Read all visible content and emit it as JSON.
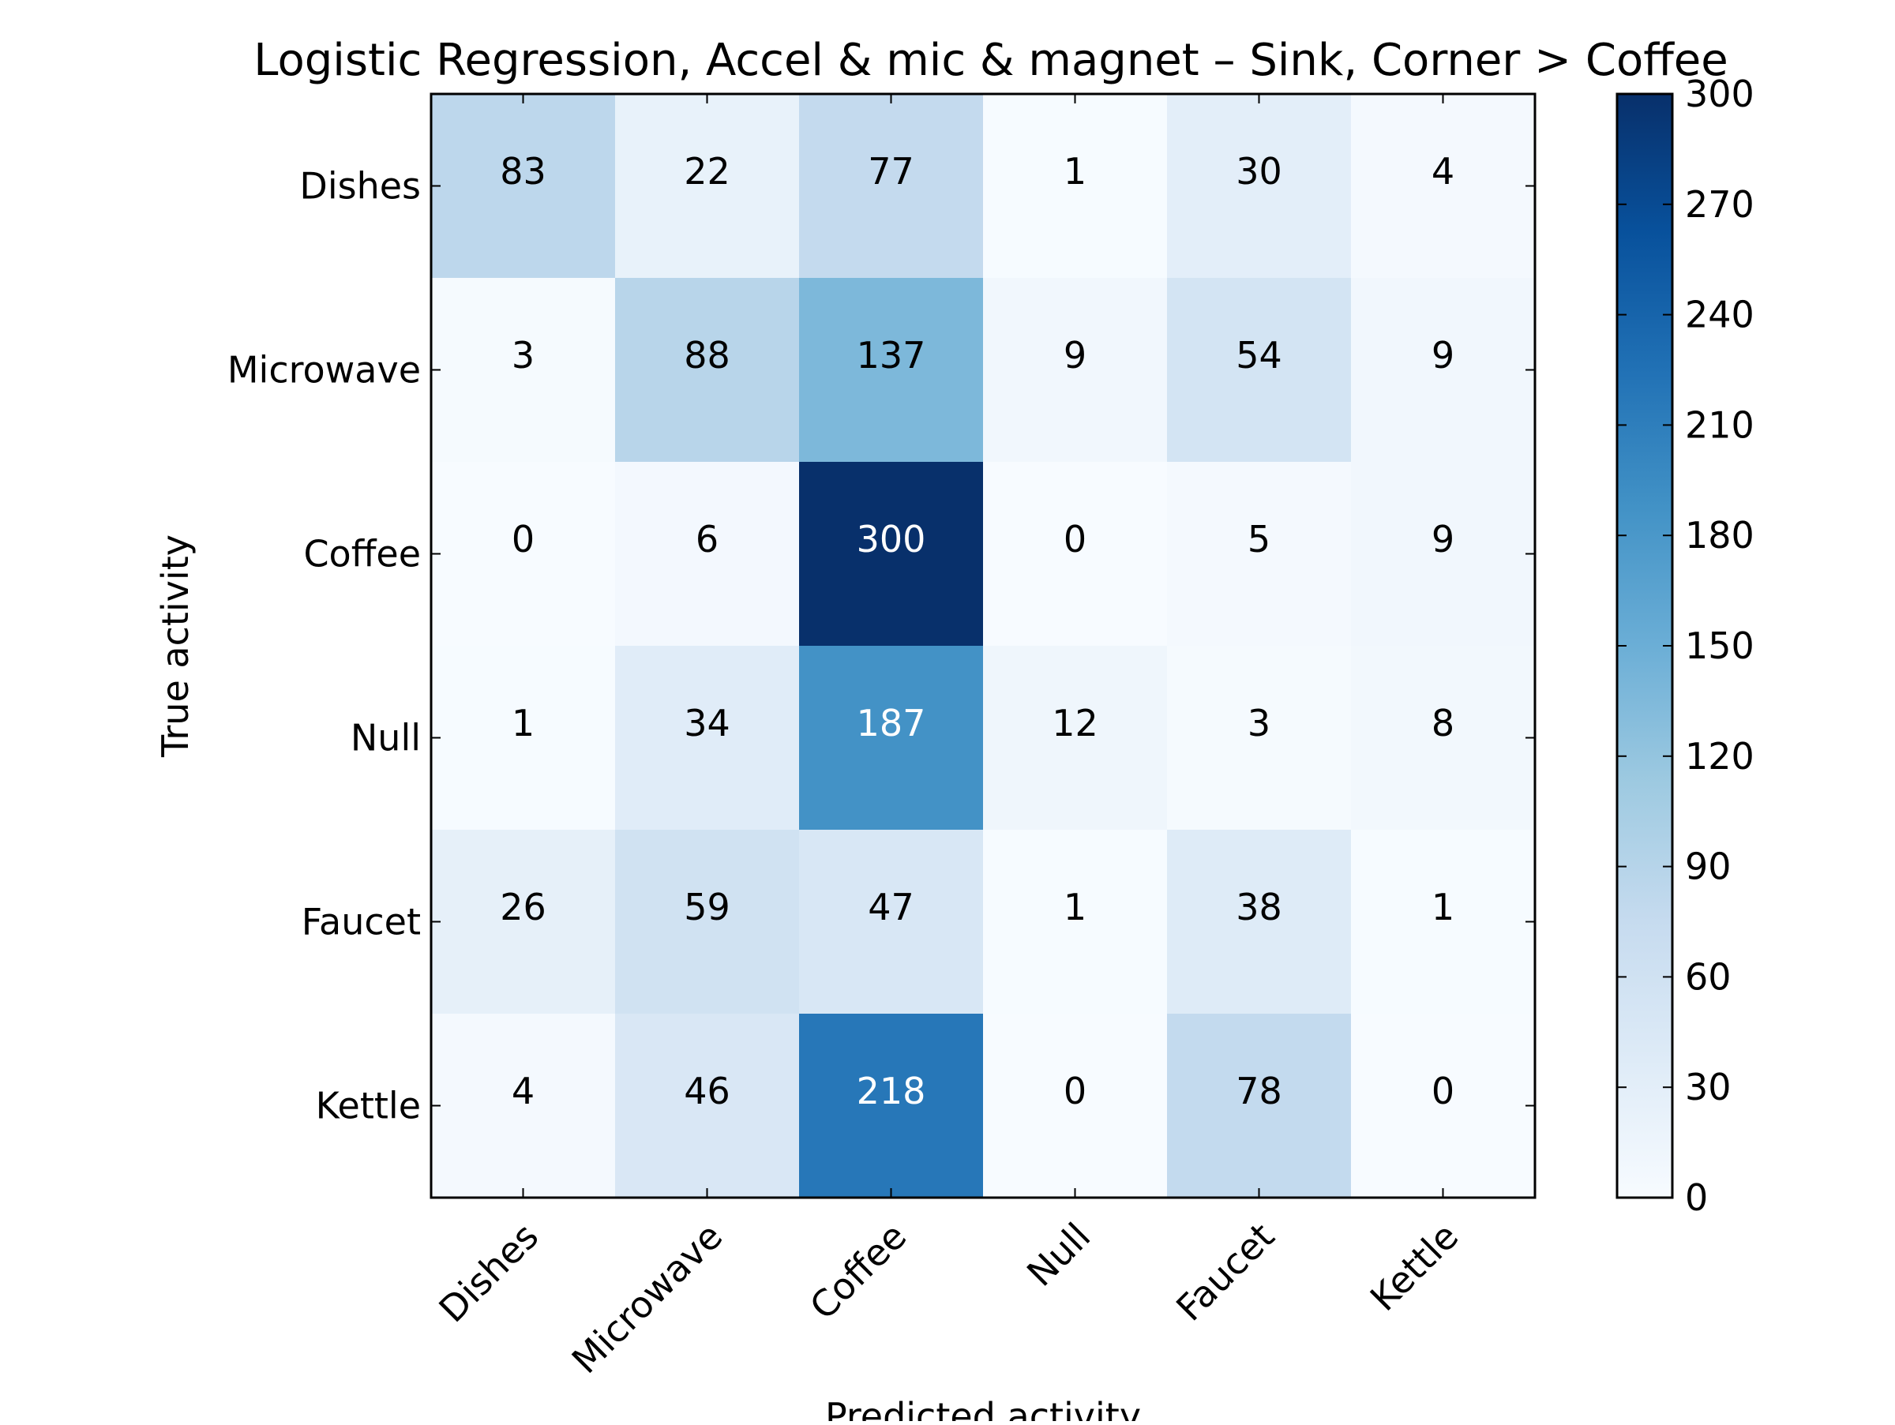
{
  "chart_data": {
    "type": "heatmap",
    "title": "Logistic Regression, Accel & mic & magnet – Sink, Corner > Coffee",
    "xlabel": "Predicted activity",
    "ylabel": "True activity",
    "x_categories": [
      "Dishes",
      "Microwave",
      "Coffee",
      "Null",
      "Faucet",
      "Kettle"
    ],
    "y_categories": [
      "Dishes",
      "Microwave",
      "Coffee",
      "Null",
      "Faucet",
      "Kettle"
    ],
    "values": [
      [
        83,
        22,
        77,
        1,
        30,
        4
      ],
      [
        3,
        88,
        137,
        9,
        54,
        9
      ],
      [
        0,
        6,
        300,
        0,
        5,
        9
      ],
      [
        1,
        34,
        187,
        12,
        3,
        8
      ],
      [
        26,
        59,
        47,
        1,
        38,
        1
      ],
      [
        4,
        46,
        218,
        0,
        78,
        0
      ]
    ],
    "colormap": "Blues",
    "colorbar": {
      "range": [
        0,
        300
      ],
      "ticks": [
        0,
        30,
        60,
        90,
        120,
        150,
        180,
        210,
        240,
        270,
        300
      ]
    },
    "text_colors": {
      "dark_cell": "#ffffff",
      "light_cell": "#000000"
    }
  }
}
